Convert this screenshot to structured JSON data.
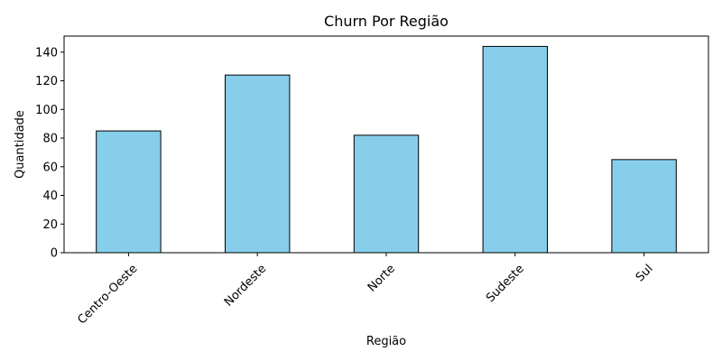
{
  "chart_data": {
    "type": "bar",
    "title": "Churn Por Região",
    "xlabel": "Região",
    "ylabel": "Quantidade",
    "categories": [
      "Centro-Oeste",
      "Nordeste",
      "Norte",
      "Sudeste",
      "Sul"
    ],
    "values": [
      85,
      124,
      82,
      144,
      65
    ],
    "ylim": [
      0,
      151.2
    ],
    "yticks": [
      0,
      20,
      40,
      60,
      80,
      100,
      120,
      140
    ],
    "bar_color": "#87CEEB",
    "bar_edge_color": "#000000",
    "grid": false,
    "xtick_rotation": 45
  }
}
